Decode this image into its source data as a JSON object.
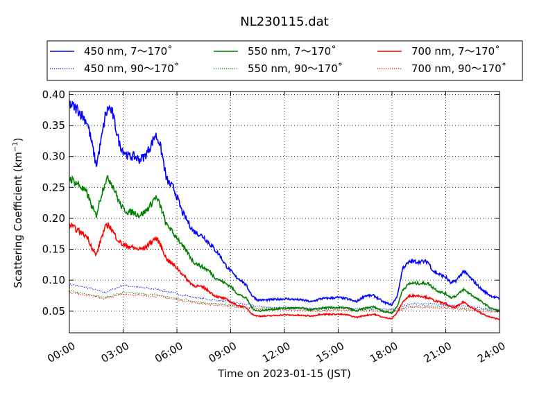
{
  "chart_data": {
    "type": "line",
    "title": "NL230115.dat",
    "xlabel": "Time on 2023-01-15 (JST)",
    "ylabel_main": "Scattering Coefficient (km",
    "ylabel_sup": "−1",
    "ylabel_close": ")",
    "xlim": [
      0,
      24
    ],
    "ylim": [
      0.015,
      0.405
    ],
    "x_ticks": [
      {
        "value": 0,
        "label": "00:00"
      },
      {
        "value": 3,
        "label": "03:00"
      },
      {
        "value": 6,
        "label": "06:00"
      },
      {
        "value": 9,
        "label": "09:00"
      },
      {
        "value": 12,
        "label": "12:00"
      },
      {
        "value": 15,
        "label": "15:00"
      },
      {
        "value": 18,
        "label": "18:00"
      },
      {
        "value": 21,
        "label": "21:00"
      },
      {
        "value": 24,
        "label": "24:00"
      }
    ],
    "y_ticks": [
      {
        "value": 0.05,
        "label": "0.05"
      },
      {
        "value": 0.1,
        "label": "0.10"
      },
      {
        "value": 0.15,
        "label": "0.15"
      },
      {
        "value": 0.2,
        "label": "0.20"
      },
      {
        "value": 0.25,
        "label": "0.25"
      },
      {
        "value": 0.3,
        "label": "0.30"
      },
      {
        "value": 0.35,
        "label": "0.35"
      },
      {
        "value": 0.4,
        "label": "0.40"
      }
    ],
    "grid": true,
    "legend_position": "top, outside plot",
    "series": [
      {
        "name": "450 nm, 7～170˚",
        "color": "#0000ff",
        "style": "solid",
        "x": [
          0,
          0.5,
          1.0,
          1.3,
          1.5,
          1.8,
          2.0,
          2.2,
          2.4,
          2.6,
          2.8,
          3.0,
          3.3,
          3.6,
          3.9,
          4.2,
          4.5,
          4.8,
          5.0,
          5.2,
          5.4,
          5.6,
          5.8,
          6.0,
          6.3,
          6.6,
          6.9,
          7.2,
          7.5,
          7.8,
          8.1,
          8.4,
          8.7,
          9.0,
          9.3,
          9.6,
          9.9,
          10.2,
          10.5,
          11,
          12,
          13,
          13.5,
          14,
          15,
          15.5,
          16,
          16.5,
          17,
          17.5,
          18,
          18.3,
          18.6,
          19,
          19.5,
          20,
          20.3,
          20.6,
          21,
          21.3,
          21.6,
          22,
          22.5,
          23,
          23.5,
          24
        ],
        "y": [
          0.385,
          0.375,
          0.355,
          0.315,
          0.285,
          0.33,
          0.365,
          0.38,
          0.37,
          0.345,
          0.32,
          0.31,
          0.3,
          0.3,
          0.295,
          0.3,
          0.315,
          0.335,
          0.325,
          0.3,
          0.265,
          0.255,
          0.25,
          0.235,
          0.21,
          0.195,
          0.18,
          0.175,
          0.17,
          0.16,
          0.15,
          0.14,
          0.125,
          0.115,
          0.105,
          0.1,
          0.09,
          0.075,
          0.068,
          0.068,
          0.07,
          0.068,
          0.065,
          0.07,
          0.072,
          0.07,
          0.065,
          0.075,
          0.075,
          0.065,
          0.06,
          0.075,
          0.12,
          0.13,
          0.13,
          0.13,
          0.115,
          0.11,
          0.105,
          0.095,
          0.1,
          0.115,
          0.1,
          0.085,
          0.075,
          0.07
        ]
      },
      {
        "name": "450 nm, 90～170˚",
        "color": "#0000ff",
        "style": "dotted",
        "x": [
          0,
          1,
          2,
          3,
          4,
          5,
          6,
          7,
          8,
          9,
          10,
          11,
          12,
          13,
          14,
          15,
          16,
          17,
          18,
          19,
          20,
          21,
          22,
          23,
          24
        ],
        "y": [
          0.093,
          0.088,
          0.08,
          0.092,
          0.088,
          0.085,
          0.078,
          0.072,
          0.068,
          0.065,
          0.06,
          0.056,
          0.056,
          0.055,
          0.054,
          0.056,
          0.054,
          0.055,
          0.052,
          0.062,
          0.062,
          0.06,
          0.058,
          0.055,
          0.052
        ]
      },
      {
        "name": "550 nm, 7～170˚",
        "color": "#008000",
        "style": "solid",
        "x": [
          0,
          0.5,
          1.0,
          1.3,
          1.5,
          1.8,
          2.0,
          2.2,
          2.4,
          2.6,
          2.8,
          3.0,
          3.3,
          3.6,
          3.9,
          4.2,
          4.5,
          4.8,
          5.0,
          5.2,
          5.4,
          5.6,
          5.8,
          6.0,
          6.3,
          6.6,
          6.9,
          7.2,
          7.5,
          7.8,
          8.1,
          8.4,
          8.7,
          9.0,
          9.3,
          9.6,
          9.9,
          10.2,
          10.5,
          11,
          12,
          13,
          13.5,
          14,
          15,
          15.5,
          16,
          16.5,
          17,
          17.5,
          18,
          18.3,
          18.6,
          19,
          19.5,
          20,
          20.3,
          20.6,
          21,
          21.3,
          21.6,
          22,
          22.5,
          23,
          23.5,
          24
        ],
        "y": [
          0.265,
          0.255,
          0.24,
          0.215,
          0.205,
          0.24,
          0.26,
          0.265,
          0.255,
          0.24,
          0.225,
          0.215,
          0.21,
          0.21,
          0.205,
          0.21,
          0.22,
          0.235,
          0.225,
          0.21,
          0.19,
          0.185,
          0.175,
          0.17,
          0.155,
          0.145,
          0.13,
          0.125,
          0.12,
          0.115,
          0.105,
          0.1,
          0.095,
          0.09,
          0.08,
          0.075,
          0.07,
          0.055,
          0.05,
          0.052,
          0.055,
          0.055,
          0.052,
          0.055,
          0.056,
          0.055,
          0.05,
          0.055,
          0.057,
          0.05,
          0.047,
          0.058,
          0.085,
          0.095,
          0.095,
          0.095,
          0.088,
          0.082,
          0.078,
          0.072,
          0.075,
          0.085,
          0.075,
          0.065,
          0.055,
          0.05
        ]
      },
      {
        "name": "550 nm, 90～170˚",
        "color": "#008000",
        "style": "dotted",
        "x": [
          0,
          1,
          2,
          3,
          4,
          5,
          6,
          7,
          8,
          9,
          10,
          11,
          12,
          13,
          14,
          15,
          16,
          17,
          18,
          19,
          20,
          21,
          22,
          23,
          24
        ],
        "y": [
          0.082,
          0.078,
          0.072,
          0.08,
          0.078,
          0.076,
          0.07,
          0.066,
          0.062,
          0.06,
          0.056,
          0.054,
          0.054,
          0.053,
          0.052,
          0.054,
          0.052,
          0.053,
          0.05,
          0.058,
          0.058,
          0.057,
          0.055,
          0.053,
          0.05
        ]
      },
      {
        "name": "700 nm, 7～170˚",
        "color": "#ff0000",
        "style": "solid",
        "x": [
          0,
          0.5,
          1.0,
          1.3,
          1.5,
          1.8,
          2.0,
          2.2,
          2.4,
          2.6,
          2.8,
          3.0,
          3.3,
          3.6,
          3.9,
          4.2,
          4.5,
          4.8,
          5.0,
          5.2,
          5.4,
          5.6,
          5.8,
          6.0,
          6.3,
          6.6,
          6.9,
          7.2,
          7.5,
          7.8,
          8.1,
          8.4,
          8.7,
          9.0,
          9.3,
          9.6,
          9.9,
          10.2,
          10.5,
          11,
          12,
          13,
          13.5,
          14,
          15,
          15.5,
          16,
          16.5,
          17,
          17.5,
          18,
          18.3,
          18.6,
          19,
          19.5,
          20,
          20.3,
          20.6,
          21,
          21.3,
          21.6,
          22,
          22.5,
          23,
          23.5,
          24
        ],
        "y": [
          0.19,
          0.18,
          0.17,
          0.15,
          0.14,
          0.17,
          0.185,
          0.19,
          0.18,
          0.17,
          0.162,
          0.157,
          0.155,
          0.152,
          0.15,
          0.152,
          0.16,
          0.168,
          0.162,
          0.15,
          0.135,
          0.13,
          0.125,
          0.12,
          0.11,
          0.1,
          0.092,
          0.09,
          0.088,
          0.082,
          0.075,
          0.072,
          0.07,
          0.065,
          0.06,
          0.058,
          0.055,
          0.045,
          0.042,
          0.042,
          0.044,
          0.043,
          0.042,
          0.045,
          0.045,
          0.044,
          0.04,
          0.043,
          0.045,
          0.04,
          0.038,
          0.048,
          0.065,
          0.075,
          0.075,
          0.072,
          0.068,
          0.065,
          0.062,
          0.056,
          0.057,
          0.065,
          0.055,
          0.046,
          0.04,
          0.037
        ]
      },
      {
        "name": "700 nm, 90～170˚",
        "color": "#ff0000",
        "style": "dotted",
        "x": [
          0,
          1,
          2,
          3,
          4,
          5,
          6,
          7,
          8,
          9,
          10,
          11,
          12,
          13,
          14,
          15,
          16,
          17,
          18,
          19,
          20,
          21,
          22,
          23,
          24
        ],
        "y": [
          0.08,
          0.076,
          0.07,
          0.078,
          0.075,
          0.074,
          0.068,
          0.064,
          0.06,
          0.058,
          0.054,
          0.052,
          0.052,
          0.051,
          0.05,
          0.052,
          0.05,
          0.051,
          0.048,
          0.056,
          0.056,
          0.055,
          0.053,
          0.05,
          0.048
        ]
      }
    ]
  }
}
